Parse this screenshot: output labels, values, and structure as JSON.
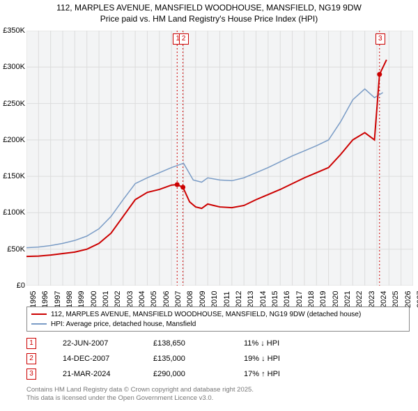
{
  "title_line1": "112, MARPLES AVENUE, MANSFIELD WOODHOUSE, MANSFIELD, NG19 9DW",
  "title_line2": "Price paid vs. HM Land Registry's House Price Index (HPI)",
  "chart": {
    "type": "line",
    "background_color": "#f3f4f5",
    "grid_color": "#dcdcdc",
    "axis_color": "#000000",
    "x": {
      "min": 1995,
      "max": 2027,
      "tick_step": 1,
      "labels": [
        "1995",
        "1996",
        "1997",
        "1998",
        "1999",
        "2000",
        "2001",
        "2002",
        "2003",
        "2004",
        "2005",
        "2006",
        "2007",
        "2008",
        "2009",
        "2010",
        "2011",
        "2012",
        "2013",
        "2014",
        "2015",
        "2016",
        "2017",
        "2018",
        "2019",
        "2020",
        "2021",
        "2022",
        "2023",
        "2024",
        "2025",
        "2026",
        "2027"
      ]
    },
    "y": {
      "min": 0,
      "max": 350000,
      "tick_step": 50000,
      "labels": [
        "£0",
        "£50K",
        "£100K",
        "£150K",
        "£200K",
        "£250K",
        "£300K",
        "£350K"
      ]
    },
    "series": [
      {
        "name": "112, MARPLES AVENUE, MANSFIELD WOODHOUSE, MANSFIELD, NG19 9DW (detached house)",
        "color": "#cc0000",
        "width": 2,
        "data": [
          [
            1995,
            40000
          ],
          [
            1996,
            40500
          ],
          [
            1997,
            42000
          ],
          [
            1998,
            44000
          ],
          [
            1999,
            46000
          ],
          [
            2000,
            50000
          ],
          [
            2001,
            58000
          ],
          [
            2002,
            72000
          ],
          [
            2003,
            95000
          ],
          [
            2004,
            118000
          ],
          [
            2005,
            128000
          ],
          [
            2006,
            132000
          ],
          [
            2007,
            138000
          ],
          [
            2007.47,
            138650
          ],
          [
            2007.95,
            135000
          ],
          [
            2008.5,
            115000
          ],
          [
            2009,
            108000
          ],
          [
            2009.5,
            106000
          ],
          [
            2010,
            112000
          ],
          [
            2010.5,
            110000
          ],
          [
            2011,
            108000
          ],
          [
            2012,
            107000
          ],
          [
            2013,
            110000
          ],
          [
            2014,
            118000
          ],
          [
            2015,
            125000
          ],
          [
            2016,
            132000
          ],
          [
            2017,
            140000
          ],
          [
            2018,
            148000
          ],
          [
            2019,
            155000
          ],
          [
            2020,
            162000
          ],
          [
            2021,
            180000
          ],
          [
            2022,
            200000
          ],
          [
            2023,
            210000
          ],
          [
            2023.8,
            200000
          ],
          [
            2024.22,
            290000
          ],
          [
            2024.8,
            310000
          ]
        ]
      },
      {
        "name": "HPI: Average price, detached house, Mansfield",
        "color": "#7a9cc6",
        "width": 1.5,
        "data": [
          [
            1995,
            52000
          ],
          [
            1996,
            53000
          ],
          [
            1997,
            55000
          ],
          [
            1998,
            58000
          ],
          [
            1999,
            62000
          ],
          [
            2000,
            68000
          ],
          [
            2001,
            78000
          ],
          [
            2002,
            95000
          ],
          [
            2003,
            118000
          ],
          [
            2004,
            140000
          ],
          [
            2005,
            148000
          ],
          [
            2006,
            155000
          ],
          [
            2007,
            162000
          ],
          [
            2008,
            168000
          ],
          [
            2008.8,
            145000
          ],
          [
            2009.5,
            142000
          ],
          [
            2010,
            148000
          ],
          [
            2011,
            145000
          ],
          [
            2012,
            144000
          ],
          [
            2013,
            148000
          ],
          [
            2014,
            155000
          ],
          [
            2015,
            162000
          ],
          [
            2016,
            170000
          ],
          [
            2017,
            178000
          ],
          [
            2018,
            185000
          ],
          [
            2019,
            192000
          ],
          [
            2020,
            200000
          ],
          [
            2021,
            225000
          ],
          [
            2022,
            255000
          ],
          [
            2023,
            270000
          ],
          [
            2023.8,
            258000
          ],
          [
            2024.5,
            265000
          ]
        ]
      }
    ],
    "sale_markers": [
      {
        "n": "1",
        "x": 2007.47,
        "y": 138650
      },
      {
        "n": "2",
        "x": 2007.95,
        "y": 135000
      },
      {
        "n": "3",
        "x": 2024.22,
        "y": 290000
      }
    ],
    "legend_swatch_red": "#cc0000",
    "legend_swatch_blue": "#7a9cc6"
  },
  "legend": {
    "row1": "112, MARPLES AVENUE, MANSFIELD WOODHOUSE, MANSFIELD, NG19 9DW (detached house)",
    "row2": "HPI: Average price, detached house, Mansfield"
  },
  "transactions": [
    {
      "n": "1",
      "date": "22-JUN-2007",
      "price": "£138,650",
      "delta": "11% ↓ HPI"
    },
    {
      "n": "2",
      "date": "14-DEC-2007",
      "price": "£135,000",
      "delta": "19% ↓ HPI"
    },
    {
      "n": "3",
      "date": "21-MAR-2024",
      "price": "£290,000",
      "delta": "17% ↑ HPI"
    }
  ],
  "footer_line1": "Contains HM Land Registry data © Crown copyright and database right 2025.",
  "footer_line2": "This data is licensed under the Open Government Licence v3.0."
}
